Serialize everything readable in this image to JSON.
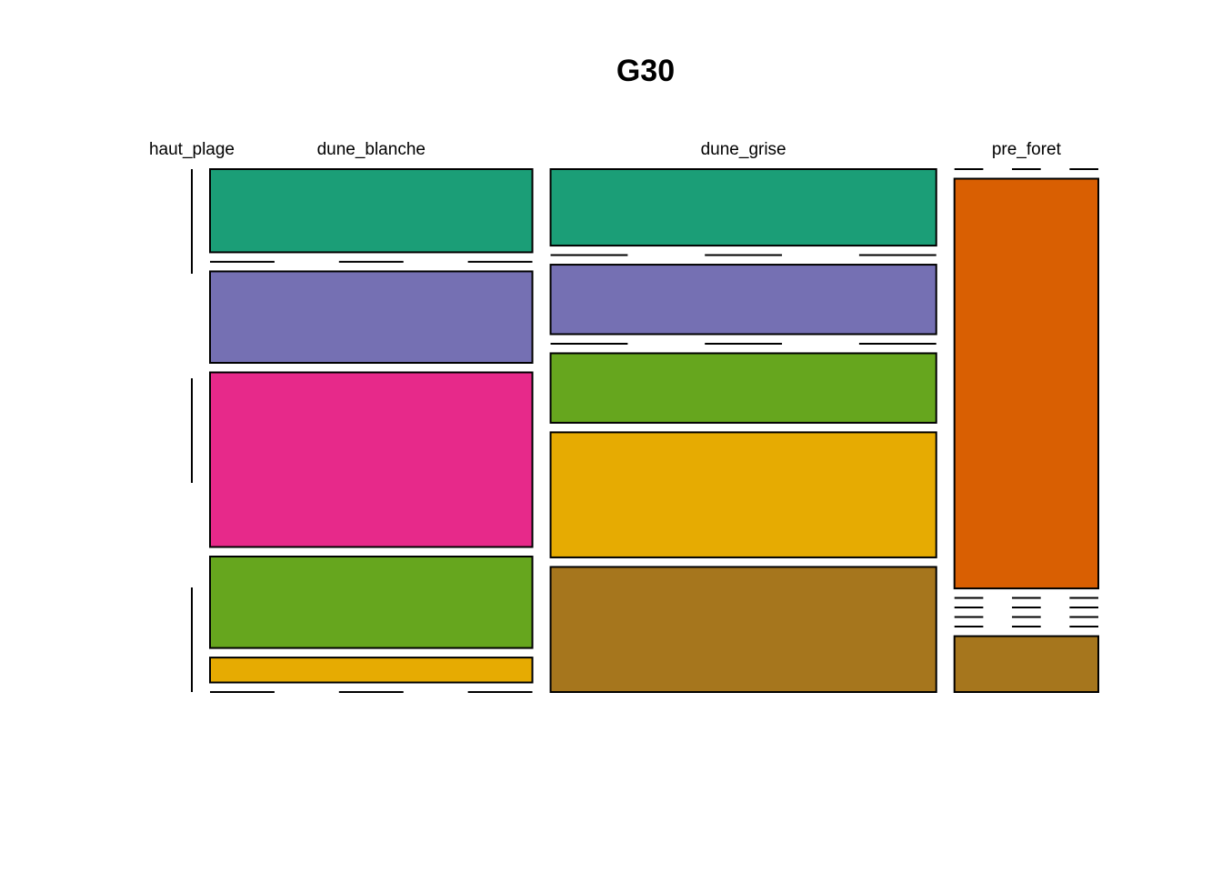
{
  "chart_data": {
    "type": "mosaic",
    "title": "G30",
    "categories": [
      "haut_plage",
      "dune_blanche",
      "dune_grise",
      "pre_foret"
    ],
    "series": [
      {
        "color": "#1B9E77",
        "values": [
          0,
          10,
          11,
          0
        ]
      },
      {
        "color": "#D95F02",
        "values": [
          0,
          0,
          0,
          22
        ]
      },
      {
        "color": "#7570B3",
        "values": [
          0,
          11,
          10,
          0
        ]
      },
      {
        "color": "#E7298A",
        "values": [
          0,
          21,
          0,
          0
        ]
      },
      {
        "color": "#66A61E",
        "values": [
          0,
          11,
          10,
          0
        ]
      },
      {
        "color": "#E6AB02",
        "values": [
          0,
          3,
          18,
          0
        ]
      },
      {
        "color": "#A6761D",
        "values": [
          0,
          0,
          18,
          3
        ]
      }
    ]
  }
}
